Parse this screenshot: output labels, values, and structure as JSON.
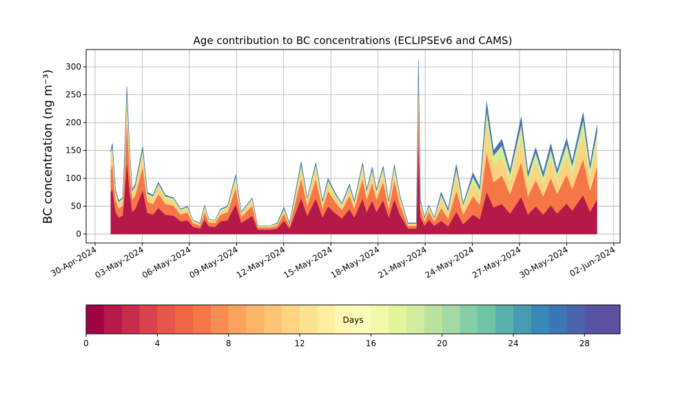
{
  "chart_data": {
    "type": "stacked_area",
    "title": "Age contribution to BC concentrations (ECLIPSEv6 and CAMS)",
    "y_label": "BC concentration (ng m⁻³)",
    "x": [
      1.0,
      1.1,
      1.3,
      1.5,
      1.75,
      1.84,
      2.02,
      2.2,
      2.37,
      2.55,
      3.03,
      3.33,
      3.68,
      4.03,
      4.47,
      5.0,
      5.44,
      5.88,
      6.23,
      6.67,
      6.97,
      7.24,
      7.63,
      7.98,
      8.42,
      8.95,
      9.3,
      10.0,
      10.35,
      11.14,
      11.58,
      12.02,
      12.37,
      13.11,
      13.5,
      14.04,
      14.47,
      14.82,
      15.26,
      15.7,
      16.18,
      16.49,
      17.02,
      17.28,
      17.63,
      17.9,
      18.33,
      18.68,
      19.04,
      19.39,
      19.91,
      20.44,
      20.57,
      20.7,
      20.96,
      21.23,
      21.58,
      22.02,
      22.46,
      22.98,
      23.42,
      24.04,
      24.47,
      24.91,
      25.35,
      25.88,
      26.4,
      27.11,
      27.54,
      28.03,
      28.51,
      28.99,
      29.39,
      30.0,
      30.35,
      31.05,
      31.49,
      31.93
    ],
    "series": [
      {
        "color": "#b41947",
        "values": [
          75,
          82,
          40,
          30,
          33,
          60,
          133,
          75,
          40,
          45,
          79,
          38,
          35,
          47,
          35,
          33,
          23,
          25,
          13,
          10,
          26,
          14,
          13,
          23,
          25,
          54,
          20,
          33,
          8,
          8,
          10,
          24,
          10,
          65,
          33,
          64,
          30,
          50,
          38,
          28,
          45,
          30,
          64,
          40,
          60,
          40,
          61,
          30,
          63,
          35,
          10,
          10,
          180,
          30,
          15,
          26,
          15,
          24,
          14,
          40,
          18,
          35,
          27,
          76,
          48,
          54,
          37,
          67,
          35,
          50,
          35,
          52,
          37,
          55,
          42,
          70,
          40,
          62
        ]
      },
      {
        "color": "#f57748",
        "values": [
          41,
          44,
          22,
          16,
          18,
          32,
          72,
          41,
          22,
          24,
          42,
          20,
          19,
          25,
          19,
          18,
          12,
          14,
          7,
          5,
          14,
          7,
          7,
          12,
          14,
          29,
          11,
          18,
          4,
          4,
          5,
          13,
          5,
          35,
          18,
          35,
          16,
          27,
          20,
          15,
          24,
          16,
          35,
          22,
          32,
          22,
          33,
          16,
          34,
          19,
          5,
          5,
          70,
          16,
          8,
          14,
          8,
          23,
          14,
          38,
          17,
          33,
          26,
          71,
          45,
          51,
          35,
          63,
          33,
          47,
          33,
          49,
          35,
          52,
          39,
          65,
          38,
          59
        ]
      },
      {
        "color": "#fed27f",
        "values": [
          20,
          21,
          10,
          8,
          8,
          16,
          34,
          20,
          10,
          12,
          20,
          10,
          9,
          12,
          9,
          8,
          6,
          6,
          3,
          3,
          7,
          4,
          3,
          6,
          6,
          14,
          5,
          8,
          2,
          2,
          3,
          6,
          3,
          17,
          8,
          17,
          8,
          13,
          10,
          7,
          12,
          8,
          17,
          10,
          16,
          10,
          16,
          8,
          16,
          9,
          3,
          3,
          35,
          8,
          4,
          7,
          4,
          15,
          9,
          25,
          11,
          22,
          17,
          47,
          30,
          34,
          23,
          42,
          22,
          31,
          22,
          32,
          23,
          34,
          26,
          44,
          25,
          39
        ]
      },
      {
        "color": "#d3ed9b",
        "values": [
          11,
          11,
          6,
          4,
          5,
          8,
          19,
          11,
          6,
          6,
          11,
          5,
          5,
          7,
          5,
          5,
          3,
          4,
          2,
          1,
          4,
          2,
          2,
          3,
          4,
          7,
          3,
          5,
          1,
          1,
          1,
          3,
          1,
          9,
          5,
          9,
          4,
          7,
          5,
          4,
          6,
          4,
          9,
          6,
          8,
          6,
          9,
          4,
          9,
          5,
          1,
          1,
          18,
          4,
          2,
          4,
          2,
          9,
          5,
          15,
          7,
          13,
          10,
          28,
          18,
          20,
          14,
          25,
          13,
          19,
          13,
          19,
          14,
          21,
          16,
          26,
          15,
          23
        ]
      },
      {
        "color": "#4a73b3",
        "values": [
          3,
          5,
          2,
          2,
          1,
          4,
          7,
          3,
          2,
          3,
          5,
          2,
          2,
          2,
          2,
          1,
          1,
          1,
          0,
          1,
          1,
          0,
          0,
          1,
          1,
          3,
          1,
          1,
          0,
          0,
          1,
          2,
          1,
          4,
          1,
          3,
          2,
          3,
          2,
          1,
          3,
          2,
          3,
          2,
          4,
          2,
          3,
          2,
          3,
          2,
          1,
          1,
          9,
          2,
          1,
          1,
          1,
          4,
          3,
          7,
          2,
          7,
          5,
          15,
          9,
          11,
          6,
          13,
          7,
          8,
          7,
          10,
          6,
          10,
          7,
          13,
          7,
          12
        ]
      }
    ],
    "xlim": [
      -0.57,
      33.4
    ],
    "xticks": [
      {
        "value": 0,
        "label": "30-Apr-2024"
      },
      {
        "value": 3,
        "label": "03-May-2024"
      },
      {
        "value": 6,
        "label": "06-May-2024"
      },
      {
        "value": 9,
        "label": "09-May-2024"
      },
      {
        "value": 12,
        "label": "12-May-2024"
      },
      {
        "value": 15,
        "label": "15-May-2024"
      },
      {
        "value": 18,
        "label": "18-May-2024"
      },
      {
        "value": 21,
        "label": "21-May-2024"
      },
      {
        "value": 24,
        "label": "24-May-2024"
      },
      {
        "value": 27,
        "label": "27-May-2024"
      },
      {
        "value": 30,
        "label": "30-May-2024"
      },
      {
        "value": 33,
        "label": "02-Jun-2024"
      }
    ],
    "ylim": [
      -16,
      331
    ],
    "yticks": [
      0,
      50,
      100,
      150,
      200,
      250,
      300
    ],
    "grid": true,
    "colorbar": {
      "label": "Days",
      "lim": [
        0,
        30
      ],
      "ticks": [
        0,
        4,
        8,
        12,
        16,
        20,
        24,
        28
      ],
      "colors": [
        "#a00343",
        "#b51a4a",
        "#c82c4c",
        "#d8434e",
        "#e4574a",
        "#ee6644",
        "#f57748",
        "#f88d52",
        "#fba35d",
        "#fdb567",
        "#fdc574",
        "#fed481",
        "#fee290",
        "#feeea1",
        "#fff8b2",
        "#fbfdb9",
        "#f2faa9",
        "#e4f49b",
        "#d1ec9c",
        "#bae3a0",
        "#a2d9a4",
        "#86cea4",
        "#6ec4a5",
        "#5ab0ab",
        "#489cb2",
        "#3988b9",
        "#3d76b5",
        "#4a65ad",
        "#5852a5",
        "#5e4fa2"
      ]
    }
  }
}
